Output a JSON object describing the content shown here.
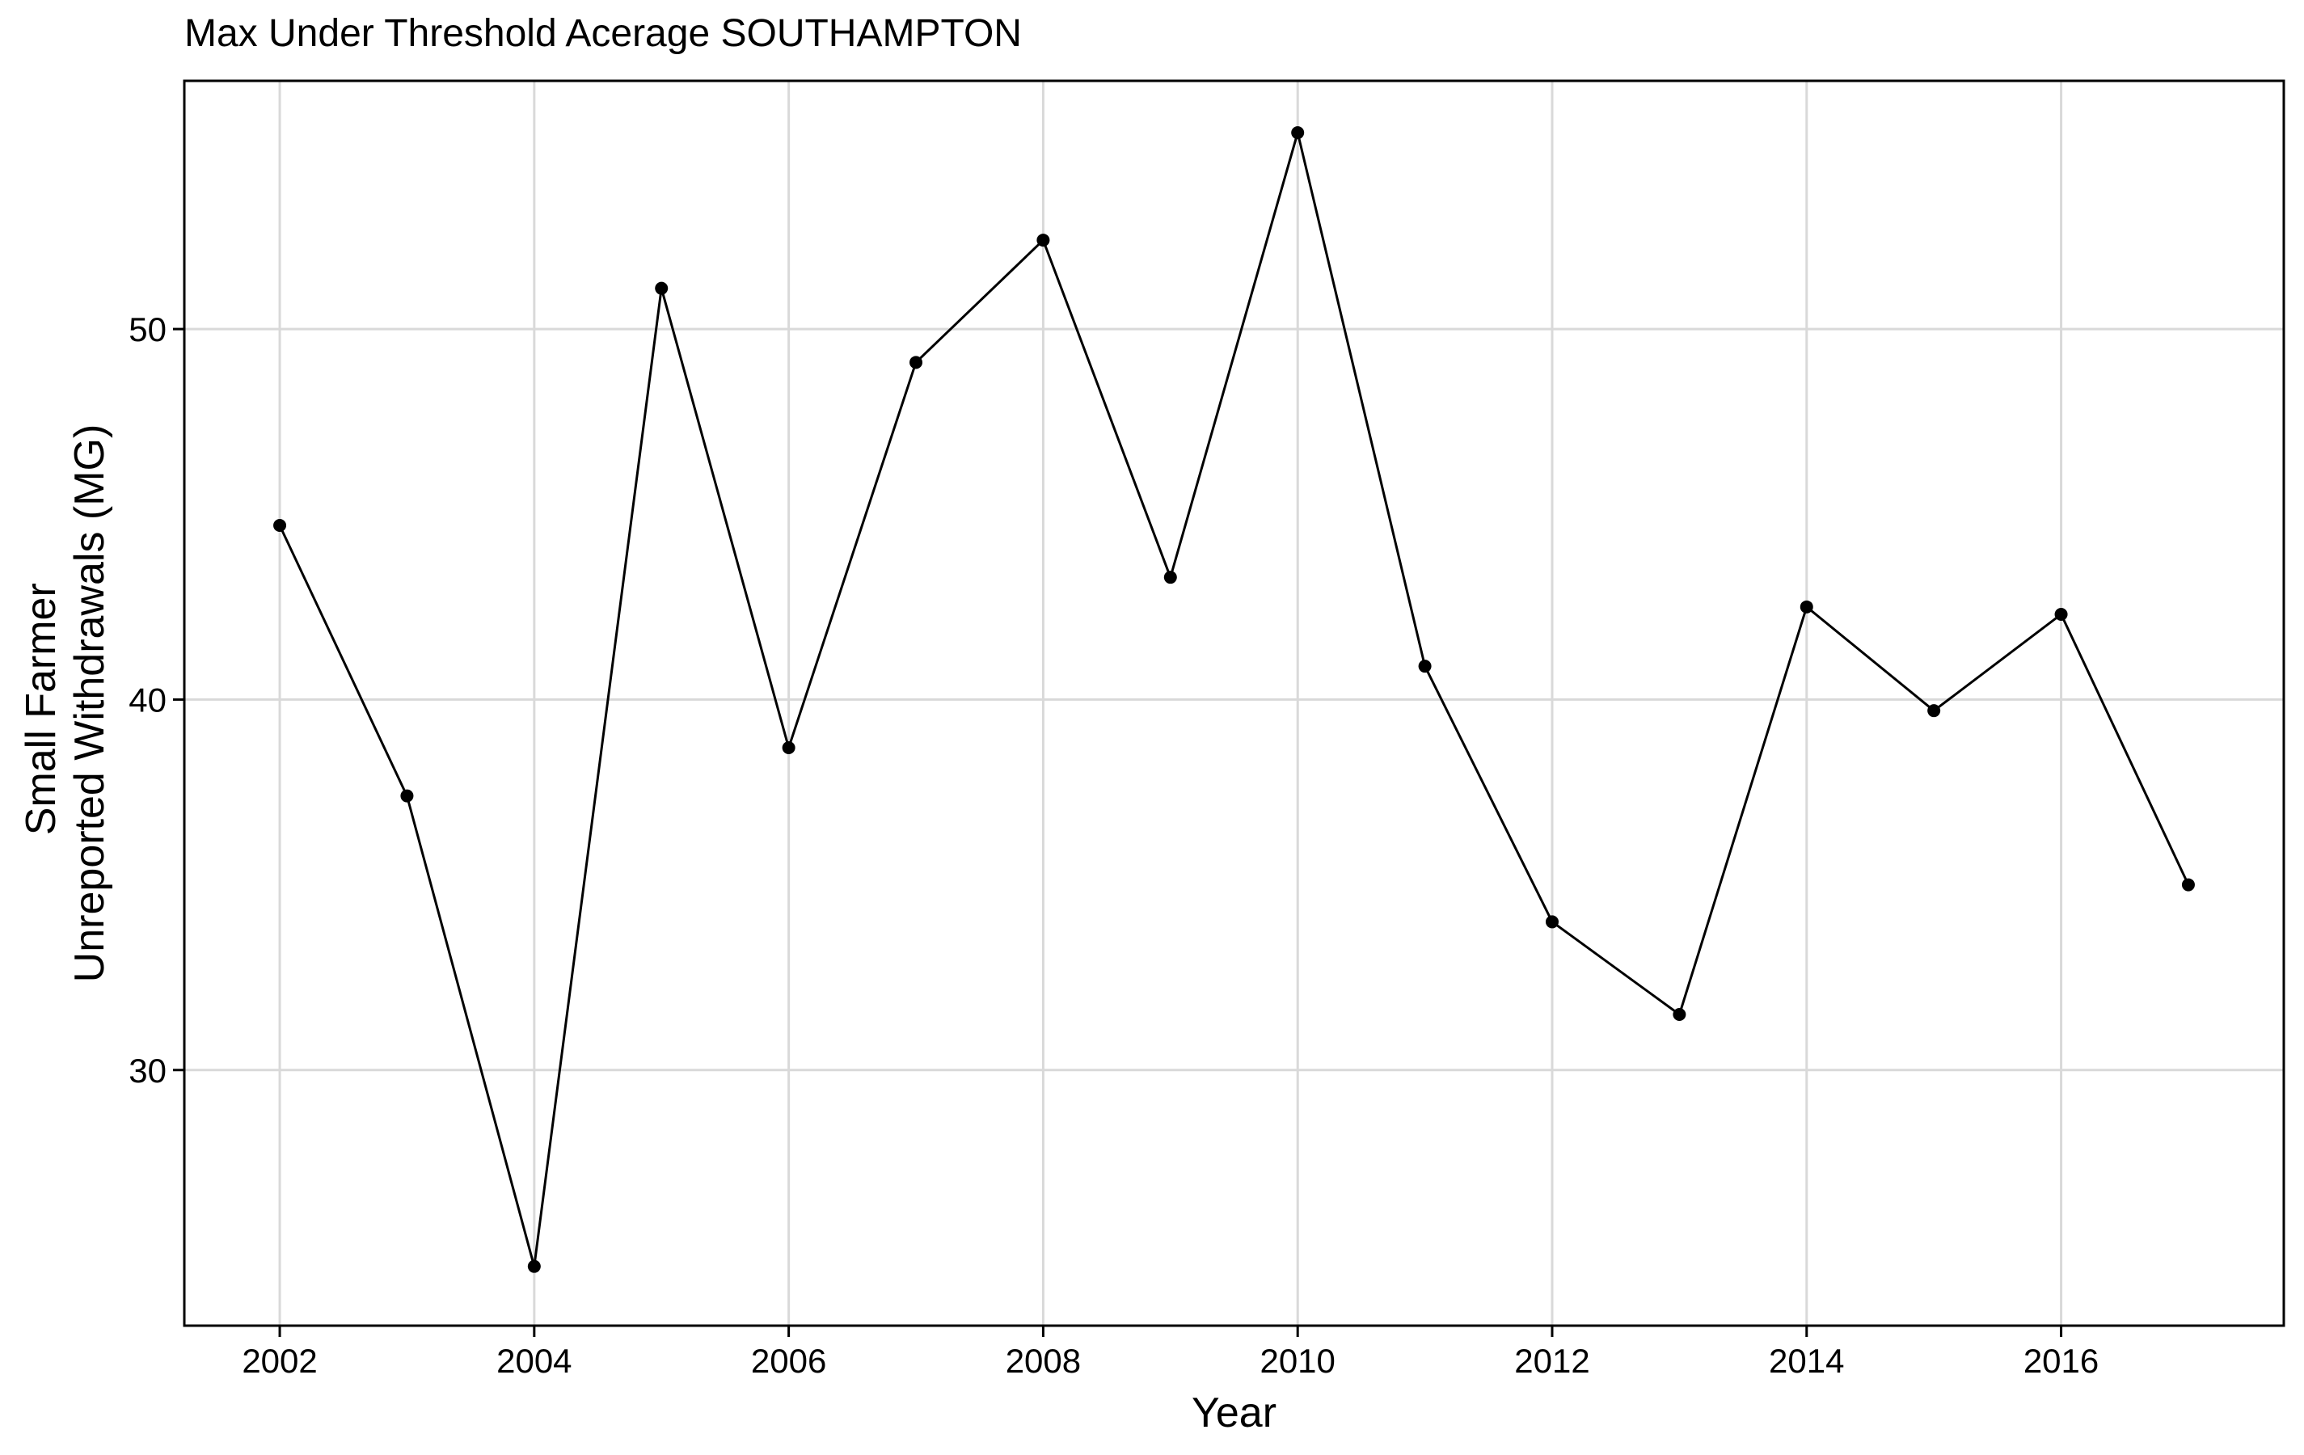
{
  "chart_data": {
    "type": "line",
    "title": "Max Under Threshold Acerage SOUTHAMPTON",
    "xlabel": "Year",
    "ylabel_lines": [
      "Small Farmer",
      "Unreported Withdrawals (MG)"
    ],
    "x": [
      2002,
      2003,
      2004,
      2005,
      2006,
      2007,
      2008,
      2009,
      2010,
      2011,
      2012,
      2013,
      2014,
      2015,
      2016,
      2017
    ],
    "y": [
      44.7,
      37.4,
      24.7,
      51.1,
      38.7,
      49.1,
      52.4,
      43.3,
      55.3,
      40.9,
      34.0,
      31.5,
      42.5,
      39.7,
      42.3,
      35.0
    ],
    "x_ticks": [
      2002,
      2004,
      2006,
      2008,
      2010,
      2012,
      2014,
      2016
    ],
    "y_ticks": [
      30,
      40,
      50
    ],
    "xlim": [
      2001.25,
      2017.75
    ],
    "ylim": [
      23.1,
      56.7
    ],
    "grid": true,
    "line_color": "#000000",
    "point_color": "#000000",
    "grid_color": "#d9d9d9"
  }
}
